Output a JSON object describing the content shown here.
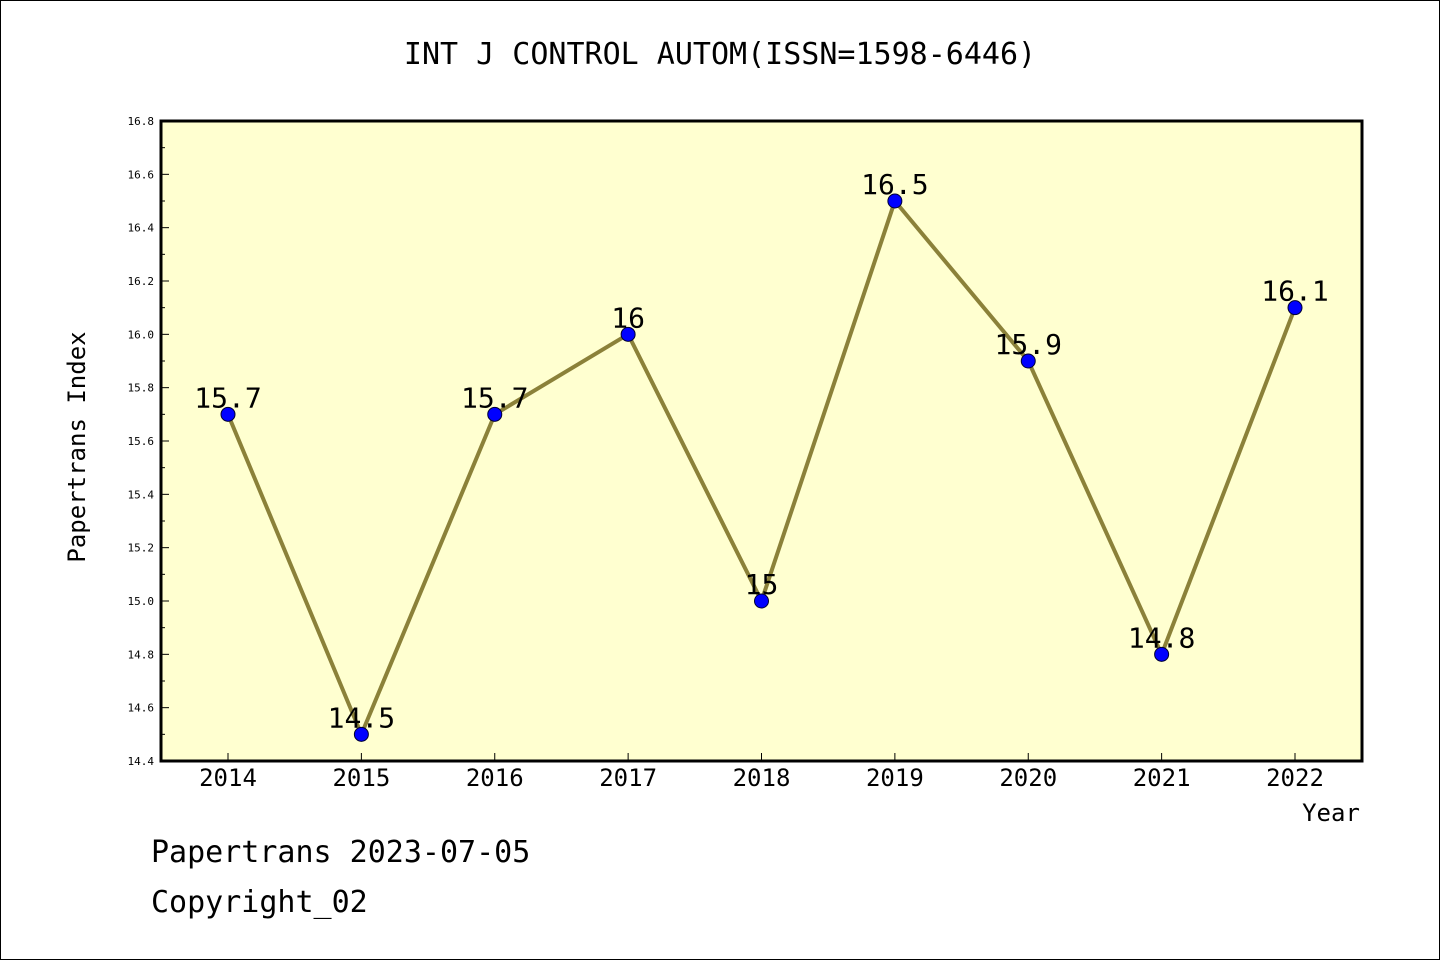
{
  "chart_data": {
    "type": "line",
    "title": "INT J CONTROL AUTOM(ISSN=1598-6446)",
    "xlabel": "Year",
    "ylabel": "Papertrans Index",
    "categories": [
      "2014",
      "2015",
      "2016",
      "2017",
      "2018",
      "2019",
      "2020",
      "2021",
      "2022"
    ],
    "series": [
      {
        "values": [
          15.7,
          14.5,
          15.7,
          16,
          15,
          16.5,
          15.9,
          14.8,
          16.1
        ]
      }
    ],
    "data_labels": [
      "15.7",
      "14.5",
      "15.7",
      "16",
      "15",
      "16.5",
      "15.9",
      "14.8",
      "16.1"
    ],
    "ylim": [
      14.4,
      16.8
    ],
    "yticks": [
      "14.4",
      "14.6",
      "14.8",
      "15.0",
      "15.2",
      "15.4",
      "15.6",
      "15.8",
      "16.0",
      "16.2",
      "16.4",
      "16.6",
      "16.8"
    ],
    "grid": false,
    "legend": "none",
    "colors": {
      "plot_background": "#ffffd0",
      "line": "#8b8139",
      "marker": "#0000ff"
    }
  },
  "footer": {
    "line1": "Papertrans 2023-07-05",
    "line2": "Copyright_02"
  }
}
